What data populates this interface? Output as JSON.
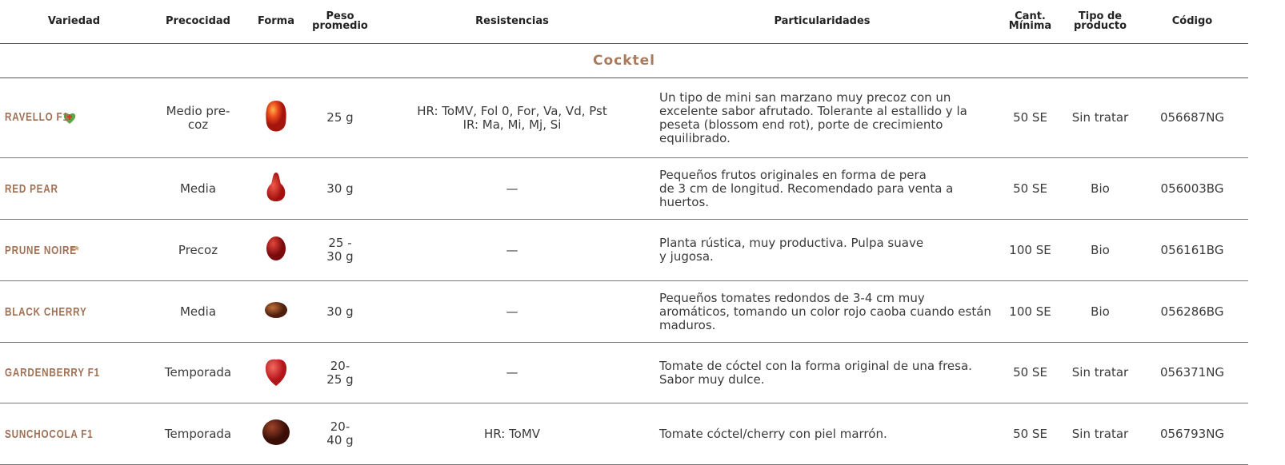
{
  "header": {
    "columns": [
      "Variedad",
      "Precocidad",
      "Forma",
      "Peso\npromedio",
      "Resistencias",
      "Particularidades",
      "Cant.\nMínima",
      "Tipo de\nproducto",
      "Código"
    ]
  },
  "table": {
    "section": "Cocktel",
    "rows": [
      {
        "variety": "RAVELLO F1",
        "precocity": "Medio pre-\ncoz",
        "weight": "25 g",
        "resistances": "HR: ToMV, Fol 0, For, Va, Vd, Pst\nIR: Ma, Mi, Mj, Si",
        "features": "Un tipo de mini san marzano muy precoz con un excelente sabor afrutado. Tolerante al estallido y la peseta (blossom end rot), porte de crecimiento equilibrado.",
        "min_qty": "50 SE",
        "product_type": "Sin tratar",
        "code": "056687NG"
      },
      {
        "variety": "RED PEAR",
        "precocity": "Media",
        "weight": "30 g",
        "resistances": "—",
        "features": "Pequeños frutos originales en forma de pera\nde 3 cm de longitud. Recomendado para venta a huertos.",
        "min_qty": "50 SE",
        "product_type": "Bio",
        "code": "056003BG"
      },
      {
        "variety": "PRUNE NOIRE",
        "mark": "**",
        "precocity": "Precoz",
        "weight": "25 -\n30 g",
        "resistances": "—",
        "features": "Planta rústica, muy productiva. Pulpa suave\ny jugosa.",
        "min_qty": "100 SE",
        "product_type": "Bio",
        "code": "056161BG"
      },
      {
        "variety": "BLACK CHERRY",
        "precocity": "Media",
        "weight": "30 g",
        "resistances": "—",
        "features": "Pequeños tomates redondos de 3-4 cm muy aromáticos, tomando un color rojo caoba cuando están maduros.",
        "min_qty": "100 SE",
        "product_type": "Bio",
        "code": "056286BG"
      },
      {
        "variety": "GARDENBERRY F1",
        "precocity": "Temporada",
        "weight": "20-\n25 g",
        "resistances": "—",
        "features": "Tomate de cóctel con la forma original de una fresa. Sabor muy dulce.",
        "min_qty": "50 SE",
        "product_type": "Sin tratar",
        "code": "056371NG"
      },
      {
        "variety": "SUNCHOCOLA F1",
        "precocity": "Temporada",
        "weight": "20-\n40 g",
        "resistances": "HR: ToMV",
        "features": "Tomate cóctel/cherry con piel marrón.",
        "min_qty": "50 SE",
        "product_type": "Sin tratar",
        "code": "056793NG"
      }
    ]
  }
}
